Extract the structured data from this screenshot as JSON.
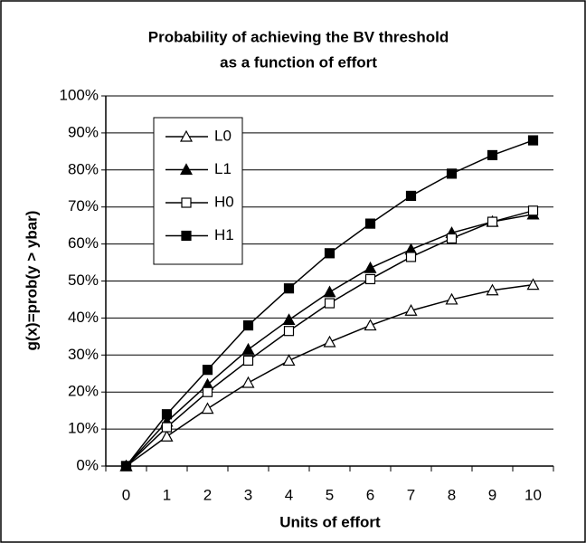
{
  "chart_data": {
    "type": "line",
    "title": [
      "Probability of achieving the BV threshold",
      "as a function of effort"
    ],
    "x_label": "Units of effort",
    "y_label": "g(x)=prob(y > ybar)",
    "categories": [
      "0",
      "1",
      "2",
      "3",
      "4",
      "5",
      "6",
      "7",
      "8",
      "9",
      "10"
    ],
    "series": [
      {
        "name": "L0",
        "color": "#000000",
        "marker": "triangle",
        "filled": false,
        "values": [
          0,
          8,
          15.5,
          22.5,
          28.5,
          33.5,
          38,
          42,
          45,
          47.5,
          49
        ]
      },
      {
        "name": "L1",
        "color": "#000000",
        "marker": "triangle",
        "filled": true,
        "values": [
          0,
          12,
          22,
          31.5,
          39.5,
          47,
          53.5,
          58.5,
          63,
          66,
          68
        ]
      },
      {
        "name": "H0",
        "color": "#000000",
        "marker": "square",
        "filled": false,
        "values": [
          0,
          10.5,
          20,
          28.5,
          36.5,
          44,
          50.5,
          56.5,
          61.5,
          66,
          69
        ]
      },
      {
        "name": "H1",
        "color": "#000000",
        "marker": "square",
        "filled": true,
        "values": [
          0,
          14,
          26,
          38,
          48,
          57.5,
          65.5,
          73,
          79,
          84,
          88
        ]
      }
    ],
    "ylim": [
      0,
      100
    ],
    "yticks": [
      {
        "value": 0,
        "label": "0%"
      },
      {
        "value": 10,
        "label": "10%"
      },
      {
        "value": 20,
        "label": "20%"
      },
      {
        "value": 30,
        "label": "30%"
      },
      {
        "value": 40,
        "label": "40%"
      },
      {
        "value": 50,
        "label": "50%"
      },
      {
        "value": 60,
        "label": "60%"
      },
      {
        "value": 70,
        "label": "70%"
      },
      {
        "value": 80,
        "label": "80%"
      },
      {
        "value": 90,
        "label": "90%"
      },
      {
        "value": 100,
        "label": "100%"
      }
    ],
    "grid": true,
    "legend": "upper left"
  }
}
